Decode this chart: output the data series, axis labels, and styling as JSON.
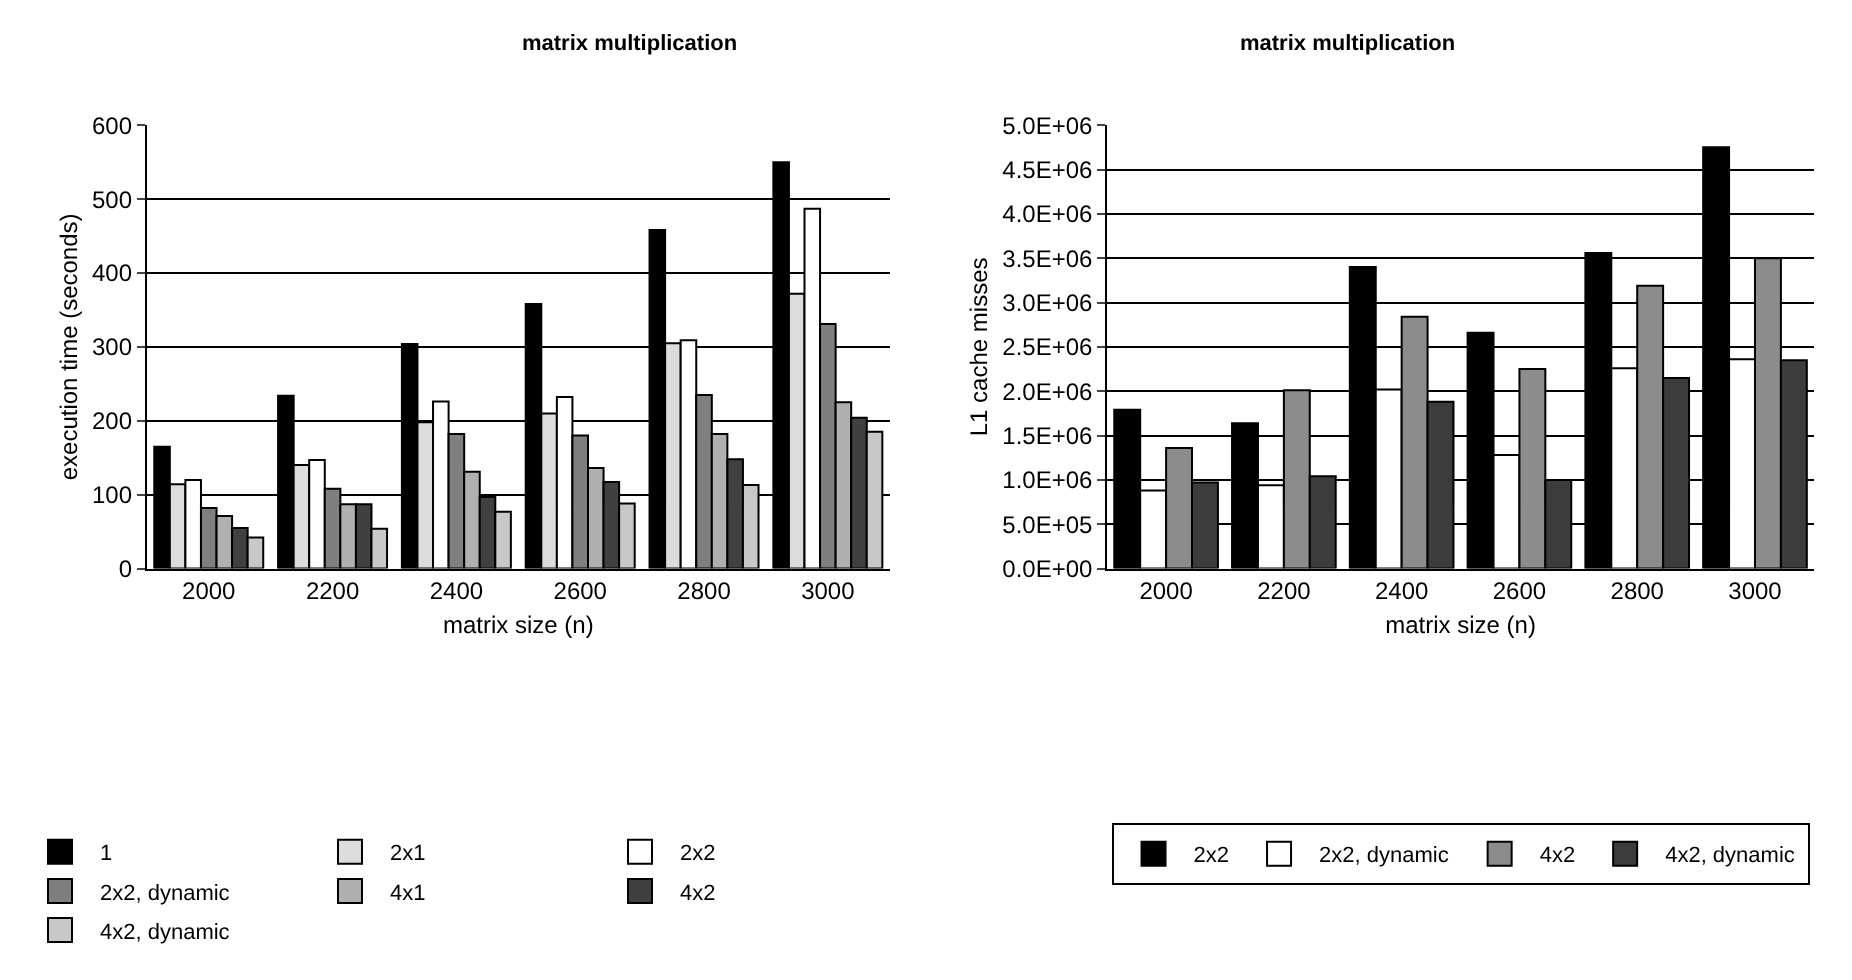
{
  "chart_data": [
    {
      "type": "bar",
      "title": "matrix multiplication",
      "xlabel": "matrix size (n)",
      "ylabel": "execution time (seconds)",
      "categories": [
        "2000",
        "2200",
        "2400",
        "2600",
        "2800",
        "3000"
      ],
      "ylim": [
        0,
        600
      ],
      "yticks": [
        0,
        100,
        200,
        300,
        400,
        500,
        600
      ],
      "grid": "y",
      "legend": "bottom",
      "series": [
        {
          "name": "1",
          "color": "#000000",
          "values": [
            165,
            234,
            304,
            358,
            458,
            550
          ]
        },
        {
          "name": "2x1",
          "color": "#dcdcdc",
          "values": [
            114,
            140,
            198,
            210,
            305,
            372
          ]
        },
        {
          "name": "2x2",
          "color": "#ffffff",
          "values": [
            120,
            147,
            226,
            232,
            309,
            487
          ]
        },
        {
          "name": "2x2, dynamic",
          "color": "#7f7f7f",
          "values": [
            82,
            108,
            182,
            180,
            235,
            331
          ]
        },
        {
          "name": "4x1",
          "color": "#b0b0b0",
          "values": [
            71,
            87,
            131,
            136,
            182,
            225
          ]
        },
        {
          "name": "4x2",
          "color": "#404040",
          "values": [
            55,
            87,
            97,
            117,
            148,
            204
          ]
        },
        {
          "name": "4x2, dynamic",
          "color": "#c8c8c8",
          "values": [
            42,
            54,
            77,
            88,
            113,
            185
          ]
        }
      ]
    },
    {
      "type": "bar",
      "title": "matrix multiplication",
      "xlabel": "matrix size (n)",
      "ylabel": "L1 cache misses",
      "categories": [
        "2000",
        "2200",
        "2400",
        "2600",
        "2800",
        "3000"
      ],
      "ylim": [
        0,
        5000000
      ],
      "yticks": [
        {
          "value": 0,
          "label": "0.0E+00"
        },
        {
          "value": 500000,
          "label": "5.0E+05"
        },
        {
          "value": 1000000,
          "label": "1.0E+06"
        },
        {
          "value": 1500000,
          "label": "1.5E+06"
        },
        {
          "value": 2000000,
          "label": "2.0E+06"
        },
        {
          "value": 2500000,
          "label": "2.5E+06"
        },
        {
          "value": 3000000,
          "label": "3.0E+06"
        },
        {
          "value": 3500000,
          "label": "3.5E+06"
        },
        {
          "value": 4000000,
          "label": "4.0E+06"
        },
        {
          "value": 4500000,
          "label": "4.5E+06"
        },
        {
          "value": 5000000,
          "label": "5.0E+06"
        }
      ],
      "grid": "y",
      "legend": "bottom",
      "series": [
        {
          "name": "2x2",
          "color": "#000000",
          "values": [
            1790000,
            1640000,
            3400000,
            2660000,
            3560000,
            4750000
          ]
        },
        {
          "name": "2x2, dynamic",
          "color": "#ffffff",
          "values": [
            880000,
            940000,
            2020000,
            1280000,
            2260000,
            2360000
          ]
        },
        {
          "name": "4x2",
          "color": "#8c8c8c",
          "values": [
            1360000,
            2010000,
            2840000,
            2250000,
            3190000,
            3500000
          ]
        },
        {
          "name": "4x2, dynamic",
          "color": "#3c3c3c",
          "values": [
            970000,
            1040000,
            1880000,
            1000000,
            2150000,
            2350000
          ]
        }
      ]
    }
  ]
}
